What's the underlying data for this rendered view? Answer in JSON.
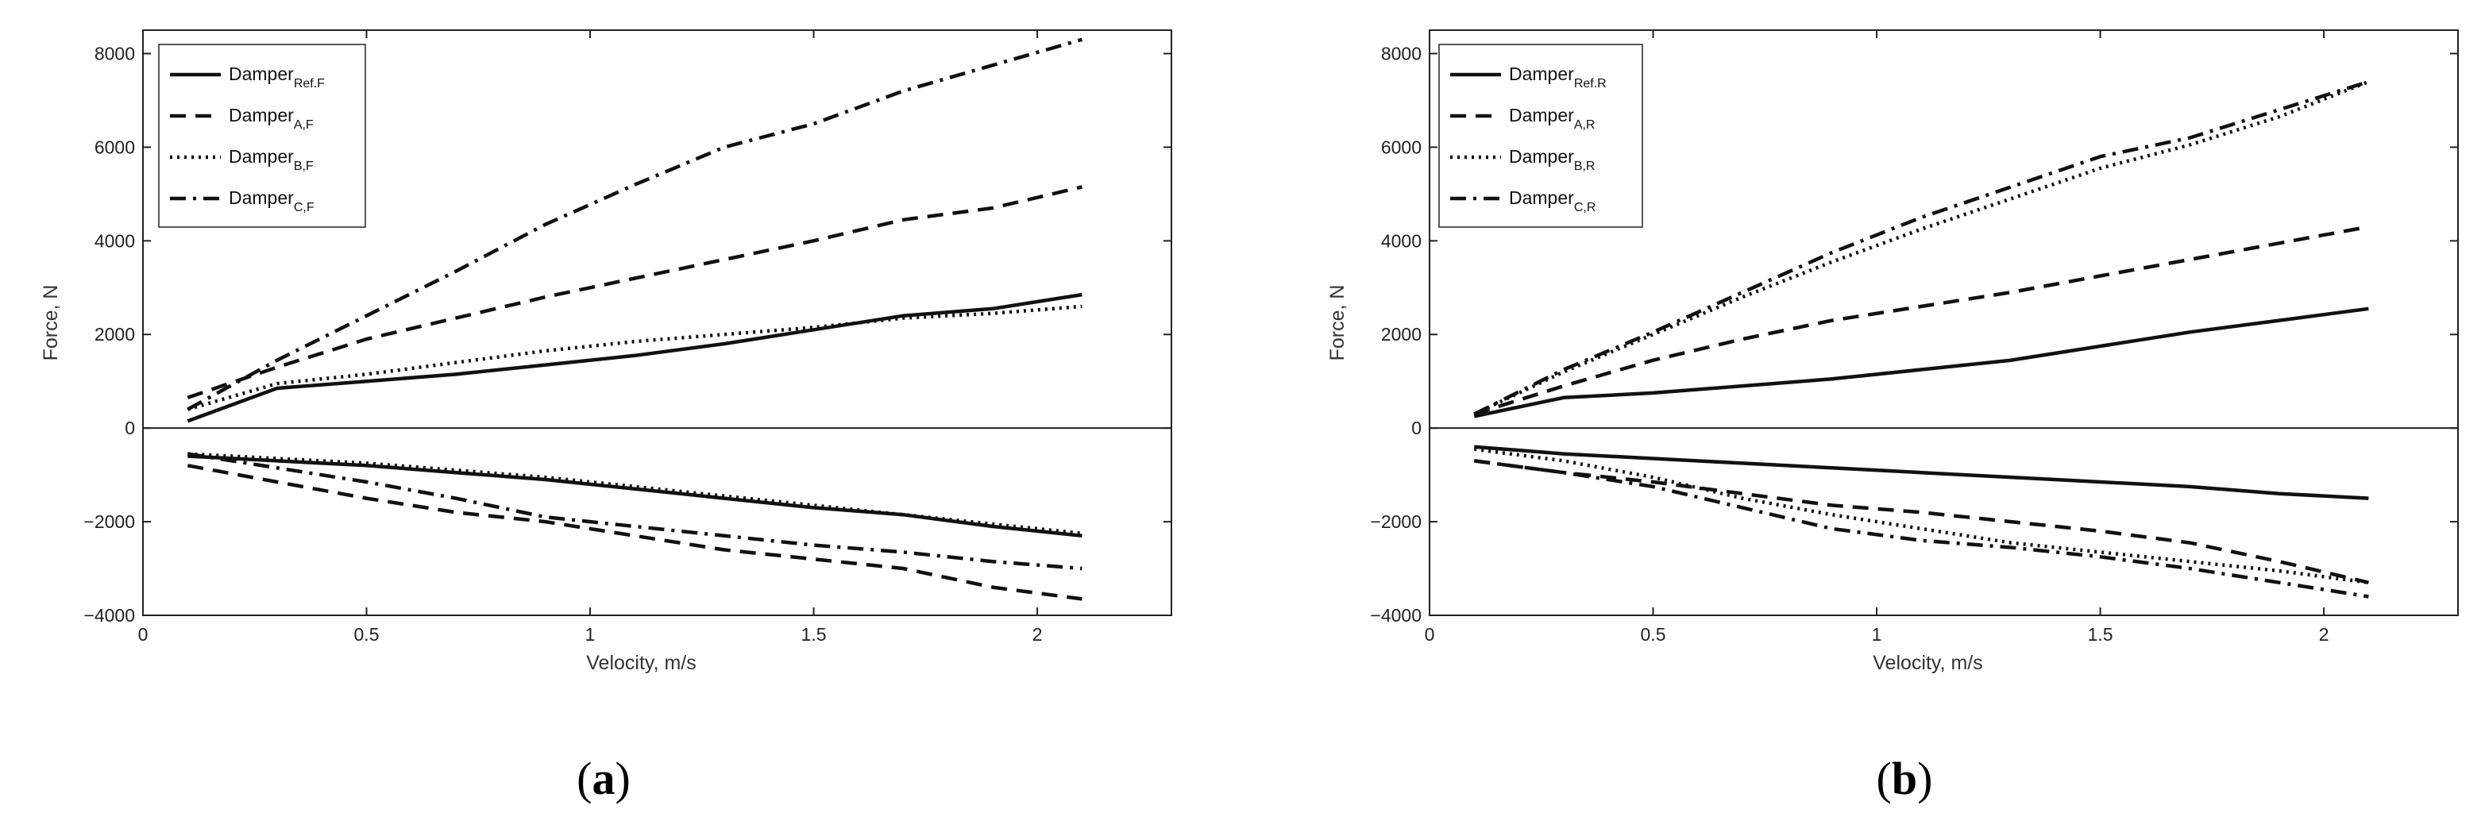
{
  "chart_data": [
    {
      "type": "line",
      "caption": "(a)",
      "caption_letter": "a",
      "xlabel": "Velocity, m/s",
      "ylabel": "Force, N",
      "xlim": [
        0,
        2.3
      ],
      "ylim": [
        -4000,
        8500
      ],
      "xticks": [
        0,
        0.5,
        1,
        1.5,
        2
      ],
      "xtick_labels": [
        "0",
        "0.5",
        "1",
        "1.5",
        "2"
      ],
      "yticks": [
        -4000,
        -2000,
        0,
        2000,
        4000,
        6000,
        8000
      ],
      "ytick_labels": [
        "−4000",
        "−2000",
        "0",
        "2000",
        "4000",
        "6000",
        "8000"
      ],
      "zero_line": true,
      "grid": false,
      "legend_position": "top-left",
      "series": [
        {
          "name": "Damper",
          "name_sub": "Ref.F",
          "style": "solid",
          "upper": {
            "x": [
              0.1,
              0.3,
              0.5,
              0.7,
              0.9,
              1.1,
              1.3,
              1.5,
              1.7,
              1.9,
              2.1
            ],
            "y": [
              150,
              850,
              1000,
              1150,
              1350,
              1550,
              1800,
              2100,
              2400,
              2550,
              2850
            ]
          },
          "lower": {
            "x": [
              0.1,
              0.3,
              0.5,
              0.7,
              0.9,
              1.1,
              1.3,
              1.5,
              1.7,
              1.9,
              2.1
            ],
            "y": [
              -600,
              -700,
              -800,
              -950,
              -1100,
              -1300,
              -1500,
              -1700,
              -1850,
              -2100,
              -2300
            ]
          }
        },
        {
          "name": "Damper",
          "name_sub": "A,F",
          "style": "dashed",
          "upper": {
            "x": [
              0.1,
              0.3,
              0.5,
              0.7,
              0.9,
              1.1,
              1.3,
              1.5,
              1.7,
              1.9,
              2.1
            ],
            "y": [
              650,
              1300,
              1900,
              2350,
              2800,
              3200,
              3600,
              4000,
              4450,
              4700,
              5150
            ]
          },
          "lower": {
            "x": [
              0.1,
              0.3,
              0.5,
              0.7,
              0.9,
              1.1,
              1.3,
              1.5,
              1.7,
              1.9,
              2.1
            ],
            "y": [
              -800,
              -1150,
              -1500,
              -1800,
              -2000,
              -2300,
              -2600,
              -2800,
              -3000,
              -3400,
              -3650
            ]
          }
        },
        {
          "name": "Damper",
          "name_sub": "B,F",
          "style": "dotted",
          "upper": {
            "x": [
              0.1,
              0.3,
              0.5,
              0.7,
              0.9,
              1.1,
              1.3,
              1.5,
              1.7,
              1.9,
              2.1
            ],
            "y": [
              400,
              950,
              1150,
              1400,
              1650,
              1850,
              2000,
              2150,
              2350,
              2450,
              2600
            ]
          },
          "lower": {
            "x": [
              0.1,
              0.3,
              0.5,
              0.7,
              0.9,
              1.1,
              1.3,
              1.5,
              1.7,
              1.9,
              2.1
            ],
            "y": [
              -550,
              -650,
              -750,
              -900,
              -1050,
              -1250,
              -1450,
              -1650,
              -1850,
              -2050,
              -2250
            ]
          }
        },
        {
          "name": "Damper",
          "name_sub": "C,F",
          "style": "dashdot",
          "upper": {
            "x": [
              0.1,
              0.3,
              0.5,
              0.7,
              0.9,
              1.1,
              1.3,
              1.5,
              1.7,
              1.9,
              2.1
            ],
            "y": [
              400,
              1450,
              2400,
              3350,
              4350,
              5200,
              6000,
              6500,
              7200,
              7750,
              8300
            ]
          },
          "lower": {
            "x": [
              0.1,
              0.3,
              0.5,
              0.7,
              0.9,
              1.1,
              1.3,
              1.5,
              1.7,
              1.9,
              2.1
            ],
            "y": [
              -550,
              -850,
              -1150,
              -1500,
              -1900,
              -2100,
              -2300,
              -2500,
              -2650,
              -2850,
              -3000
            ]
          }
        }
      ]
    },
    {
      "type": "line",
      "caption": "(b)",
      "caption_letter": "b",
      "xlabel": "Velocity, m/s",
      "ylabel": "Force, N",
      "xlim": [
        0,
        2.3
      ],
      "ylim": [
        -4000,
        8500
      ],
      "xticks": [
        0,
        0.5,
        1,
        1.5,
        2
      ],
      "xtick_labels": [
        "0",
        "0.5",
        "1",
        "1.5",
        "2"
      ],
      "yticks": [
        -4000,
        -2000,
        0,
        2000,
        4000,
        6000,
        8000
      ],
      "ytick_labels": [
        "−4000",
        "−2000",
        "0",
        "2000",
        "4000",
        "6000",
        "8000"
      ],
      "zero_line": true,
      "grid": false,
      "legend_position": "top-left",
      "series": [
        {
          "name": "Damper",
          "name_sub": "Ref.R",
          "style": "solid",
          "upper": {
            "x": [
              0.1,
              0.3,
              0.5,
              0.7,
              0.9,
              1.1,
              1.3,
              1.5,
              1.7,
              1.9,
              2.1
            ],
            "y": [
              250,
              650,
              750,
              900,
              1050,
              1250,
              1450,
              1750,
              2050,
              2300,
              2550
            ]
          },
          "lower": {
            "x": [
              0.1,
              0.3,
              0.5,
              0.7,
              0.9,
              1.1,
              1.3,
              1.5,
              1.7,
              1.9,
              2.1
            ],
            "y": [
              -400,
              -550,
              -650,
              -750,
              -850,
              -950,
              -1050,
              -1150,
              -1250,
              -1400,
              -1500
            ]
          }
        },
        {
          "name": "Damper",
          "name_sub": "A,R",
          "style": "dashed",
          "upper": {
            "x": [
              0.1,
              0.3,
              0.5,
              0.7,
              0.9,
              1.1,
              1.3,
              1.5,
              1.7,
              1.9,
              2.1
            ],
            "y": [
              300,
              900,
              1450,
              1900,
              2300,
              2600,
              2900,
              3250,
              3600,
              3950,
              4300
            ]
          },
          "lower": {
            "x": [
              0.1,
              0.3,
              0.5,
              0.7,
              0.9,
              1.1,
              1.3,
              1.5,
              1.7,
              1.9,
              2.1
            ],
            "y": [
              -700,
              -950,
              -1150,
              -1400,
              -1650,
              -1800,
              -2000,
              -2200,
              -2450,
              -2850,
              -3300
            ]
          }
        },
        {
          "name": "Damper",
          "name_sub": "B,R",
          "style": "dotted",
          "upper": {
            "x": [
              0.1,
              0.3,
              0.5,
              0.7,
              0.9,
              1.1,
              1.3,
              1.5,
              1.7,
              1.9,
              2.1
            ],
            "y": [
              300,
              1200,
              2000,
              2800,
              3550,
              4250,
              4900,
              5550,
              6050,
              6650,
              7400
            ]
          },
          "lower": {
            "x": [
              0.1,
              0.3,
              0.5,
              0.7,
              0.9,
              1.1,
              1.3,
              1.5,
              1.7,
              1.9,
              2.1
            ],
            "y": [
              -450,
              -700,
              -1050,
              -1500,
              -1850,
              -2150,
              -2450,
              -2650,
              -2850,
              -3050,
              -3300
            ]
          }
        },
        {
          "name": "Damper",
          "name_sub": "C,R",
          "style": "dashdot",
          "upper": {
            "x": [
              0.1,
              0.3,
              0.5,
              0.7,
              0.9,
              1.1,
              1.3,
              1.5,
              1.7,
              1.9,
              2.1
            ],
            "y": [
              300,
              1250,
              2050,
              2900,
              3750,
              4500,
              5150,
              5800,
              6200,
              6800,
              7400
            ]
          },
          "lower": {
            "x": [
              0.1,
              0.3,
              0.5,
              0.7,
              0.9,
              1.1,
              1.3,
              1.5,
              1.7,
              1.9,
              2.1
            ],
            "y": [
              -700,
              -950,
              -1250,
              -1700,
              -2150,
              -2400,
              -2550,
              -2750,
              -3000,
              -3300,
              -3600
            ]
          }
        }
      ]
    }
  ]
}
